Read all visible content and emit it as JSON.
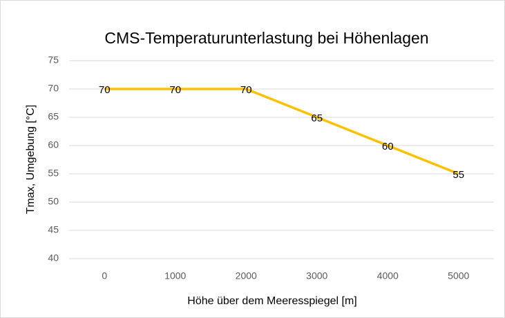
{
  "chart_data": {
    "type": "line",
    "title": "CMS-Temperaturunterlastung bei Höhenlagen",
    "x_label": "Höhe über dem Meeresspiegel [m]",
    "y_label": "Tmax, Umgebung [°C]",
    "x": [
      0,
      1000,
      2000,
      3000,
      4000,
      5000
    ],
    "values": [
      70,
      70,
      70,
      65,
      60,
      55
    ],
    "color": "#ffc000",
    "xlim": [
      -500,
      5500
    ],
    "xticks": [
      0,
      1000,
      2000,
      3000,
      4000,
      5000
    ],
    "ylim": [
      40,
      75
    ],
    "yticks": [
      40,
      45,
      50,
      55,
      60,
      65,
      70,
      75
    ],
    "grid": true
  }
}
